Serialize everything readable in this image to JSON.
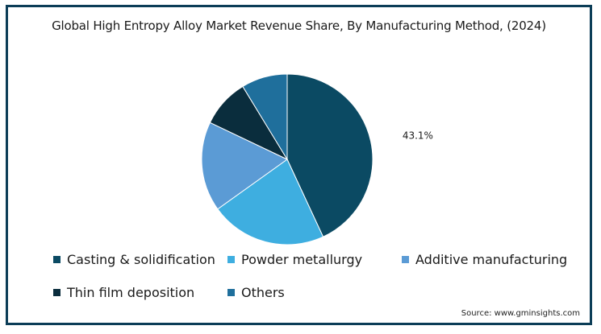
{
  "chart_data": {
    "type": "pie",
    "title": "Global High Entropy Alloy Market Revenue Share, By Manufacturing Method,  (2024)",
    "categories": [
      "Casting & solidification",
      "Powder metallurgy",
      "Additive manufacturing",
      "Thin film deposition",
      "Others"
    ],
    "values": [
      43.1,
      22.0,
      17.0,
      9.2,
      8.7
    ],
    "colors": [
      "#0b4a63",
      "#3eaee0",
      "#5b9bd5",
      "#0a2d3d",
      "#1f6f9c"
    ],
    "data_labels": [
      "43.1%",
      "",
      "",
      "",
      ""
    ],
    "legend_position": "bottom"
  },
  "source": "Source: www.gminsights.com"
}
